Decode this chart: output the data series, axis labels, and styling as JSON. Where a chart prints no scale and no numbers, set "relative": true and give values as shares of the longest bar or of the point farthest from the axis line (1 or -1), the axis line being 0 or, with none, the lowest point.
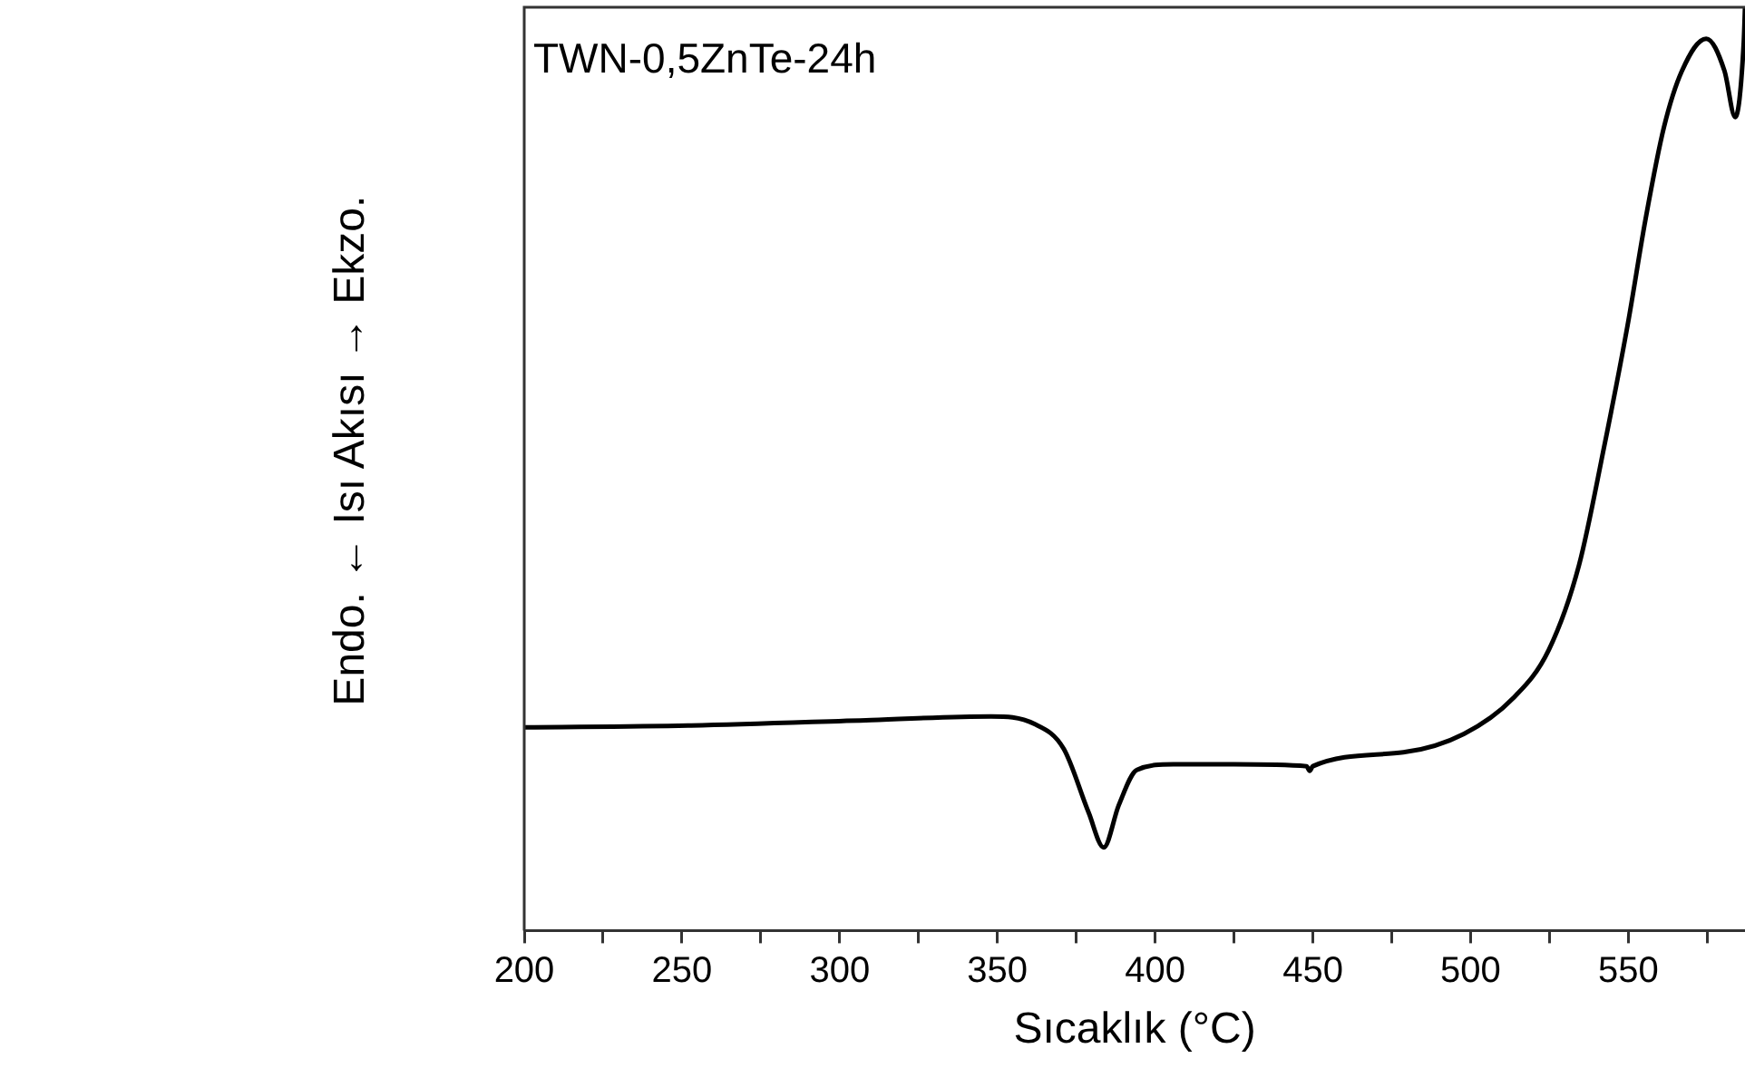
{
  "chart_data": {
    "type": "line",
    "xlabel": "Sıcaklık (°C)",
    "ylabel": "Endo. ← Isı Akısı → Ekzo.",
    "annotations": [
      "TWN-0,5ZnTe-24h"
    ],
    "relative": true,
    "xlim": [
      200,
      587
    ],
    "xticks": [
      200,
      {
        "value": 225,
        "label": null
      },
      250,
      {
        "value": 275,
        "label": null
      },
      300,
      {
        "value": 325,
        "label": null
      },
      350,
      {
        "value": 375,
        "label": null
      },
      400,
      {
        "value": 425,
        "label": null
      },
      450,
      {
        "value": 475,
        "label": null
      },
      500,
      {
        "value": 525,
        "label": null
      },
      550,
      {
        "value": 575,
        "label": null
      }
    ],
    "series": [
      {
        "color": "#000000",
        "x": [
          200,
          252,
          310,
          348,
          361.6,
          371,
          378.9,
          383.7,
          388.5,
          394.2,
          405.8,
          425,
          448,
          449,
          450,
          478.7,
          497.9,
          513.3,
          524.8,
          534.4,
          542,
          549.8,
          555.5,
          561.3,
          567,
          574.7,
          580.5,
          583.9,
          586.6,
          587
        ],
        "values": [
          0.22,
          0.222,
          0.228,
          0.232,
          0.224,
          0.197,
          0.128,
          0.09,
          0.136,
          0.174,
          0.18,
          0.18,
          0.178,
          0.173,
          0.178,
          0.193,
          0.213,
          0.251,
          0.304,
          0.396,
          0.518,
          0.656,
          0.771,
          0.87,
          0.931,
          0.966,
          0.931,
          0.881,
          0.962,
          1
        ]
      }
    ]
  }
}
